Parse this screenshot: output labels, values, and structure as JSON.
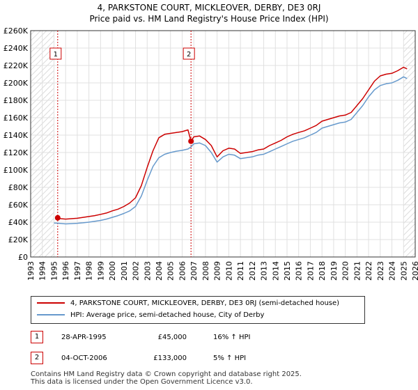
{
  "title_line1": "4, PARKSTONE COURT, MICKLEOVER, DERBY, DE3 0RJ",
  "title_line2": "Price paid vs. HM Land Registry's House Price Index (HPI)",
  "colors": {
    "property": "#cc0000",
    "hpi": "#6699cc",
    "grid": "#e0e0e0",
    "hatch": "#d0d0d0",
    "sale_marker": "#cc0000"
  },
  "legend": {
    "property_label": "4, PARKSTONE COURT, MICKLEOVER, DERBY, DE3 0RJ (semi-detached house)",
    "hpi_label": "HPI: Average price, semi-detached house, City of Derby"
  },
  "sales": [
    {
      "num": "1",
      "date": "28-APR-1995",
      "price": "£45,000",
      "hpi": "16% ↑ HPI"
    },
    {
      "num": "2",
      "date": "04-OCT-2006",
      "price": "£133,000",
      "hpi": "5% ↑ HPI"
    }
  ],
  "footer": {
    "line1": "Contains HM Land Registry data © Crown copyright and database right 2025.",
    "line2": "This data is licensed under the Open Government Licence v3.0."
  },
  "chart_data": {
    "type": "line",
    "title": "Price paid vs. HM Land Registry's House Price Index (HPI)",
    "xlabel": "",
    "ylabel": "",
    "xlim": [
      1993,
      2026
    ],
    "ylim": [
      0,
      260000
    ],
    "y_ticks": [
      0,
      20000,
      40000,
      60000,
      80000,
      100000,
      120000,
      140000,
      160000,
      180000,
      200000,
      220000,
      240000,
      260000
    ],
    "y_tick_labels": [
      "£0",
      "£20K",
      "£40K",
      "£60K",
      "£80K",
      "£100K",
      "£120K",
      "£140K",
      "£160K",
      "£180K",
      "£200K",
      "£220K",
      "£240K",
      "£260K"
    ],
    "x_ticks": [
      1993,
      1994,
      1995,
      1996,
      1997,
      1998,
      1999,
      2000,
      2001,
      2002,
      2003,
      2004,
      2005,
      2006,
      2007,
      2008,
      2009,
      2010,
      2011,
      2012,
      2013,
      2014,
      2015,
      2016,
      2017,
      2018,
      2019,
      2020,
      2021,
      2022,
      2023,
      2024,
      2025,
      2026
    ],
    "x_tick_labels": [
      "1993",
      "1994",
      "1995",
      "1996",
      "1997",
      "1998",
      "1999",
      "2000",
      "2001",
      "2002",
      "2003",
      "2004",
      "2005",
      "2006",
      "2007",
      "2008",
      "2009",
      "2010",
      "2011",
      "2012",
      "2013",
      "2014",
      "2015",
      "2016",
      "2017",
      "2018",
      "2019",
      "2020",
      "2021",
      "2022",
      "2023",
      "2024",
      "2025",
      "2026"
    ],
    "hatched_ranges": [
      [
        1993,
        1995.0
      ],
      [
        2025.0,
        2026
      ]
    ],
    "grid": true,
    "series": [
      {
        "name": "4, PARKSTONE COURT, MICKLEOVER, DERBY, DE3 0RJ (semi-detached house)",
        "color": "#cc0000",
        "x": [
          1995.32,
          1995.6,
          1996.0,
          1996.5,
          1997.0,
          1997.5,
          1998.0,
          1998.5,
          1999.0,
          1999.5,
          2000.0,
          2000.5,
          2001.0,
          2001.5,
          2002.0,
          2002.5,
          2003.0,
          2003.5,
          2004.0,
          2004.5,
          2005.0,
          2005.5,
          2006.0,
          2006.5,
          2006.76,
          2007.0,
          2007.5,
          2008.0,
          2008.5,
          2009.0,
          2009.5,
          2010.0,
          2010.5,
          2011.0,
          2011.5,
          2012.0,
          2012.5,
          2013.0,
          2013.5,
          2014.0,
          2014.5,
          2015.0,
          2015.5,
          2016.0,
          2016.5,
          2017.0,
          2017.5,
          2018.0,
          2018.5,
          2019.0,
          2019.5,
          2020.0,
          2020.5,
          2021.0,
          2021.5,
          2022.0,
          2022.5,
          2023.0,
          2023.5,
          2024.0,
          2024.5,
          2025.0,
          2025.3
        ],
        "values": [
          45000,
          44000,
          43500,
          44000,
          44500,
          45500,
          46500,
          47500,
          49000,
          50500,
          53000,
          55000,
          58000,
          62000,
          68000,
          82000,
          103000,
          122000,
          137000,
          141000,
          142000,
          143000,
          144000,
          146000,
          133000,
          138000,
          139000,
          135000,
          128000,
          115000,
          122000,
          125000,
          124000,
          119000,
          120000,
          121000,
          123000,
          124000,
          128000,
          131000,
          134000,
          138000,
          141000,
          143000,
          145000,
          148000,
          151000,
          156000,
          158000,
          160000,
          162000,
          163000,
          166000,
          174000,
          182000,
          192000,
          202000,
          208000,
          210000,
          211000,
          214000,
          218000,
          216000
        ]
      },
      {
        "name": "HPI: Average price, semi-detached house, City of Derby",
        "color": "#6699cc",
        "x": [
          1995.0,
          1995.32,
          1995.6,
          1996.0,
          1996.5,
          1997.0,
          1997.5,
          1998.0,
          1998.5,
          1999.0,
          1999.5,
          2000.0,
          2000.5,
          2001.0,
          2001.5,
          2002.0,
          2002.5,
          2003.0,
          2003.5,
          2004.0,
          2004.5,
          2005.0,
          2005.5,
          2006.0,
          2006.5,
          2006.76,
          2007.0,
          2007.5,
          2008.0,
          2008.5,
          2009.0,
          2009.5,
          2010.0,
          2010.5,
          2011.0,
          2011.5,
          2012.0,
          2012.5,
          2013.0,
          2013.5,
          2014.0,
          2014.5,
          2015.0,
          2015.5,
          2016.0,
          2016.5,
          2017.0,
          2017.5,
          2018.0,
          2018.5,
          2019.0,
          2019.5,
          2020.0,
          2020.5,
          2021.0,
          2021.5,
          2022.0,
          2022.5,
          2023.0,
          2023.5,
          2024.0,
          2024.5,
          2025.0,
          2025.3
        ],
        "values": [
          39000,
          38800,
          38500,
          38000,
          38300,
          38700,
          39300,
          40000,
          41000,
          42000,
          43500,
          45500,
          47500,
          50000,
          53000,
          58000,
          70000,
          88000,
          104000,
          114000,
          118000,
          120000,
          121500,
          122500,
          124000,
          126500,
          130000,
          131000,
          128000,
          120000,
          109000,
          115000,
          118000,
          117000,
          113000,
          114000,
          115000,
          117000,
          118000,
          121000,
          124000,
          127000,
          130000,
          133000,
          135000,
          137000,
          140000,
          143000,
          148000,
          150000,
          152000,
          154000,
          155000,
          158000,
          166000,
          174000,
          184000,
          192000,
          197000,
          199000,
          200000,
          203000,
          207000,
          205000
        ]
      }
    ],
    "sale_points": [
      {
        "label": "1",
        "x": 1995.32,
        "value": 45000
      },
      {
        "label": "2",
        "x": 2006.76,
        "value": 133000
      }
    ]
  }
}
